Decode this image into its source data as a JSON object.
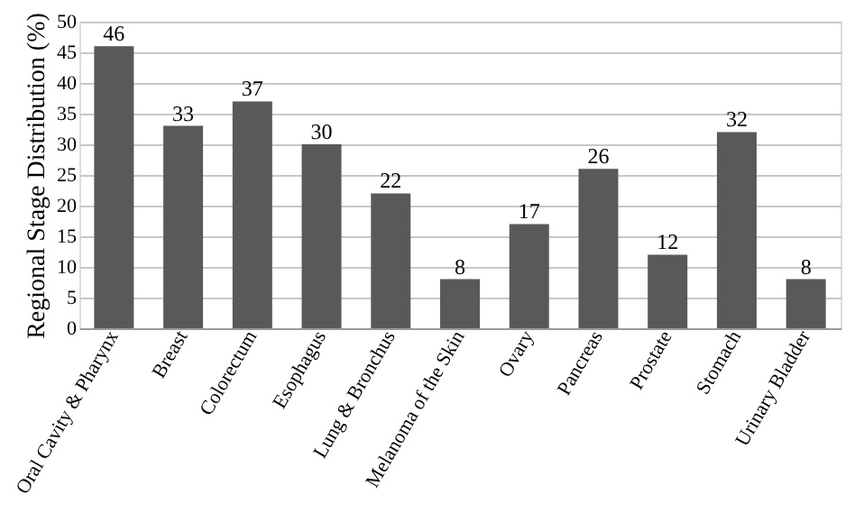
{
  "chart_data": {
    "type": "bar",
    "ylabel": "Regional Stage Distribution (%)",
    "categories": [
      "Oral Cavity & Pharynx",
      "Breast",
      "Colorectum",
      "Esophagus",
      "Lung & Bronchus",
      "Melanoma of the Skin",
      "Ovary",
      "Pancreas",
      "Prostate",
      "Stomach",
      "Urinary Bladder"
    ],
    "values": [
      46,
      33,
      37,
      30,
      22,
      8,
      17,
      26,
      12,
      32,
      8
    ],
    "color": "#595959",
    "ylim": [
      0,
      50
    ],
    "yticks": [
      0,
      5,
      10,
      15,
      20,
      25,
      30,
      35,
      40,
      45,
      50
    ],
    "grid": "y",
    "data_labels": true
  }
}
